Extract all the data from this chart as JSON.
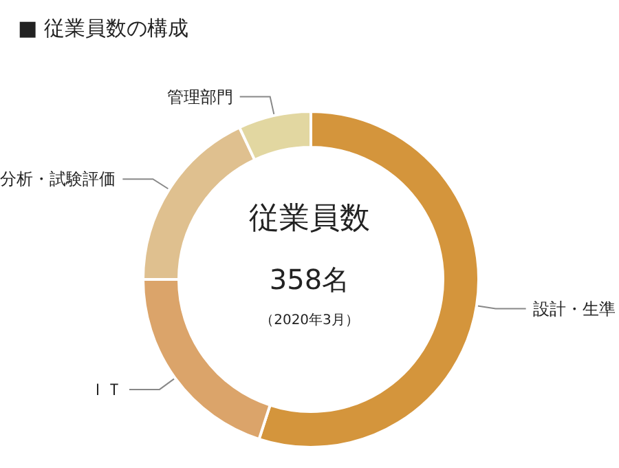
{
  "chart_data": {
    "type": "donut",
    "title": "■ 従業員数の構成",
    "categories": [
      "設計・生準",
      "ＩＴ",
      "分析・試験評価",
      "管理部門"
    ],
    "values": [
      55,
      20,
      18,
      7
    ],
    "colors": [
      "#d4953c",
      "#dba46a",
      "#dfc08f",
      "#e2d7a1"
    ],
    "annotations": [
      "従業員数",
      "358名",
      "（2020年3月）"
    ],
    "legend": false
  }
}
